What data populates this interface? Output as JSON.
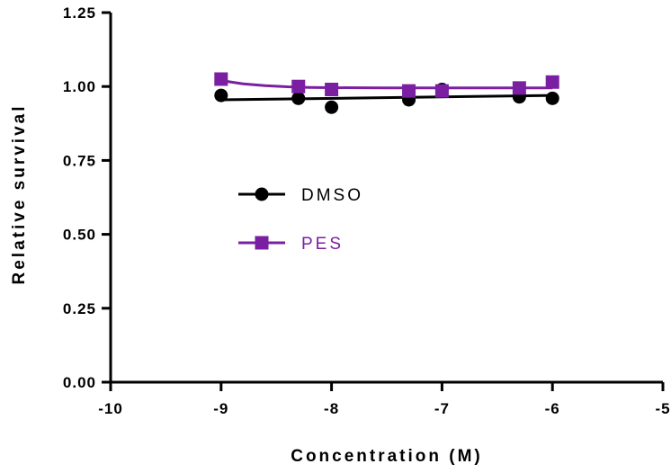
{
  "chart_data": {
    "type": "scatter",
    "xlabel": "Concentration (M)",
    "ylabel": "Relative survival",
    "xlim": [
      -10,
      -5
    ],
    "ylim": [
      0,
      1.25
    ],
    "x_ticks": [
      "-10",
      "-9",
      "-8",
      "-7",
      "-6",
      "-5"
    ],
    "y_ticks": [
      "0.00",
      "0.25",
      "0.50",
      "0.75",
      "1.00",
      "1.25"
    ],
    "legend_position": "center-left",
    "grid": false,
    "series": [
      {
        "name": "DMSO",
        "marker": "circle",
        "color": "#000000",
        "x": [
          -9,
          -8.3,
          -8,
          -7.3,
          -7,
          -6.3,
          -6
        ],
        "y": [
          0.97,
          0.96,
          0.93,
          0.955,
          0.99,
          0.965,
          0.96
        ],
        "fit": {
          "x": [
            -9,
            -6
          ],
          "y": [
            0.955,
            0.97
          ]
        }
      },
      {
        "name": "PES",
        "marker": "square",
        "color": "#7B1FA2",
        "x": [
          -9,
          -8.3,
          -8,
          -7.3,
          -7,
          -6.3,
          -6
        ],
        "y": [
          1.025,
          1.0,
          0.99,
          0.985,
          0.985,
          0.995,
          1.015
        ],
        "fit": {
          "x": [
            -9,
            -8.8,
            -8.6,
            -8.4,
            -8.2,
            -8.0,
            -7.5,
            -7.0,
            -6.5,
            -6.0
          ],
          "y": [
            1.02,
            1.009,
            1.003,
            0.999,
            0.997,
            0.996,
            0.995,
            0.995,
            0.995,
            0.995
          ]
        }
      }
    ]
  }
}
